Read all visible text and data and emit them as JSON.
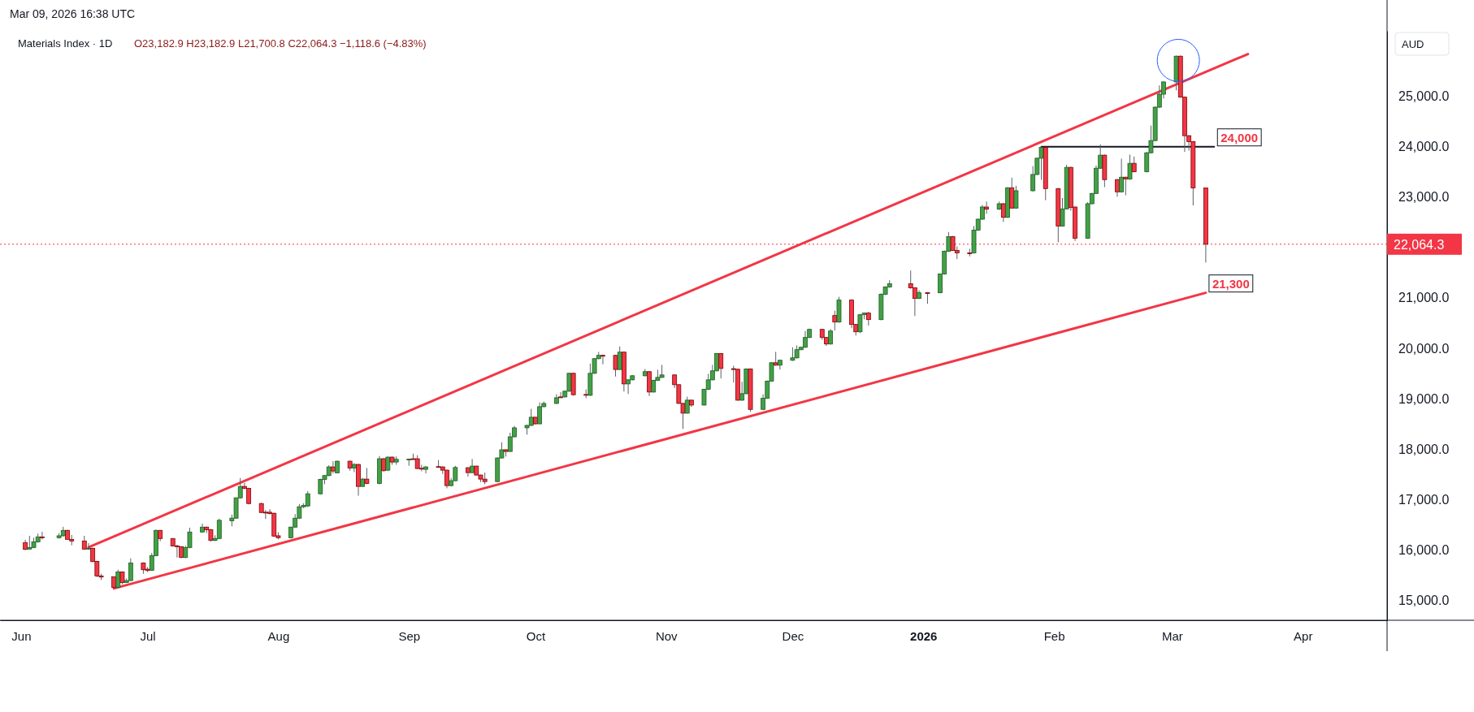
{
  "chart_data": {
    "type": "candlestick",
    "title": "Materials Index · 1D",
    "subtitle": "O23,182.9 H23,182.9 L21,700.8 C22,064.3 −1,118.6 (−4.83%)",
    "ylabel": "AUD",
    "annotations": [
      "Mar 09, 2026 16:38 UTC",
      {
        "text": "24,000",
        "x": "2026-03-11",
        "y": 24000
      },
      {
        "text": "21,300",
        "x": "2026-03-09",
        "y": 21100
      }
    ],
    "xlim": [
      "2025-05-27",
      "2026-04-21"
    ],
    "xticks": [
      {
        "value": "2025-06-01",
        "label": "Jun"
      },
      {
        "value": "2025-07-01",
        "label": "Jul"
      },
      {
        "value": "2025-08-01",
        "label": "Aug"
      },
      {
        "value": "2025-09-01",
        "label": "Sep"
      },
      {
        "value": "2025-10-01",
        "label": "Oct"
      },
      {
        "value": "2025-11-01",
        "label": "Nov"
      },
      {
        "value": "2025-12-01",
        "label": "Dec"
      },
      {
        "value": "2026-01-01",
        "label": "2026"
      },
      {
        "value": "2026-02-01",
        "label": "Feb"
      },
      {
        "value": "2026-03-01",
        "label": "Mar"
      },
      {
        "value": "2026-04-01",
        "label": "Apr"
      }
    ],
    "ylim": [
      14600,
      26300
    ],
    "yticks": [
      {
        "value": 15000,
        "label": "15,000.0"
      },
      {
        "value": 16000,
        "label": "16,000.0"
      },
      {
        "value": 17000,
        "label": "17,000.0"
      },
      {
        "value": 18000,
        "label": "18,000.0"
      },
      {
        "value": 19000,
        "label": "19,000.0"
      },
      {
        "value": 20000,
        "label": "20,000.0"
      },
      {
        "value": 21000,
        "label": "21,000.0"
      },
      {
        "value": 23000,
        "label": "23,000.0"
      },
      {
        "value": 24000,
        "label": "24,000.0"
      },
      {
        "value": 25000,
        "label": "25,000.0"
      }
    ],
    "ref_lines": [
      {
        "axis": "y",
        "value": 22064.3,
        "label": "22,064.3",
        "color": "#f23645",
        "line_style": "dotted"
      }
    ],
    "x": [
      "2025-06-02",
      "2025-06-03",
      "2025-06-04",
      "2025-06-05",
      "2025-06-06",
      "2025-06-10",
      "2025-06-11",
      "2025-06-12",
      "2025-06-13",
      "2025-06-16",
      "2025-06-17",
      "2025-06-18",
      "2025-06-19",
      "2025-06-20",
      "2025-06-23",
      "2025-06-24",
      "2025-06-25",
      "2025-06-26",
      "2025-06-27",
      "2025-06-30",
      "2025-07-01",
      "2025-07-02",
      "2025-07-03",
      "2025-07-04",
      "2025-07-07",
      "2025-07-08",
      "2025-07-09",
      "2025-07-10",
      "2025-07-11",
      "2025-07-14",
      "2025-07-15",
      "2025-07-16",
      "2025-07-17",
      "2025-07-18",
      "2025-07-21",
      "2025-07-22",
      "2025-07-23",
      "2025-07-24",
      "2025-07-25",
      "2025-07-28",
      "2025-07-29",
      "2025-07-30",
      "2025-07-31",
      "2025-08-01",
      "2025-08-04",
      "2025-08-05",
      "2025-08-06",
      "2025-08-07",
      "2025-08-08",
      "2025-08-11",
      "2025-08-12",
      "2025-08-13",
      "2025-08-14",
      "2025-08-15",
      "2025-08-18",
      "2025-08-19",
      "2025-08-20",
      "2025-08-21",
      "2025-08-22",
      "2025-08-25",
      "2025-08-26",
      "2025-08-27",
      "2025-08-28",
      "2025-08-29",
      "2025-09-01",
      "2025-09-02",
      "2025-09-03",
      "2025-09-04",
      "2025-09-05",
      "2025-09-08",
      "2025-09-09",
      "2025-09-10",
      "2025-09-11",
      "2025-09-12",
      "2025-09-15",
      "2025-09-16",
      "2025-09-17",
      "2025-09-18",
      "2025-09-19",
      "2025-09-22",
      "2025-09-23",
      "2025-09-24",
      "2025-09-25",
      "2025-09-26",
      "2025-09-29",
      "2025-09-30",
      "2025-10-01",
      "2025-10-02",
      "2025-10-03",
      "2025-10-06",
      "2025-10-07",
      "2025-10-08",
      "2025-10-09",
      "2025-10-10",
      "2025-10-13",
      "2025-10-14",
      "2025-10-15",
      "2025-10-16",
      "2025-10-17",
      "2025-10-20",
      "2025-10-21",
      "2025-10-22",
      "2025-10-23",
      "2025-10-24",
      "2025-10-27",
      "2025-10-28",
      "2025-10-29",
      "2025-10-30",
      "2025-10-31",
      "2025-11-03",
      "2025-11-04",
      "2025-11-05",
      "2025-11-06",
      "2025-11-07",
      "2025-11-10",
      "2025-11-11",
      "2025-11-12",
      "2025-11-13",
      "2025-11-14",
      "2025-11-17",
      "2025-11-18",
      "2025-11-19",
      "2025-11-20",
      "2025-11-21",
      "2025-11-24",
      "2025-11-25",
      "2025-11-26",
      "2025-11-27",
      "2025-11-28",
      "2025-12-01",
      "2025-12-02",
      "2025-12-03",
      "2025-12-04",
      "2025-12-05",
      "2025-12-08",
      "2025-12-09",
      "2025-12-10",
      "2025-12-11",
      "2025-12-12",
      "2025-12-15",
      "2025-12-16",
      "2025-12-17",
      "2025-12-18",
      "2025-12-19",
      "2025-12-22",
      "2025-12-23",
      "2025-12-24",
      "2025-12-29",
      "2025-12-30",
      "2025-12-31",
      "2026-01-02",
      "2026-01-05",
      "2026-01-06",
      "2026-01-07",
      "2026-01-08",
      "2026-01-09",
      "2026-01-12",
      "2026-01-13",
      "2026-01-14",
      "2026-01-15",
      "2026-01-16",
      "2026-01-19",
      "2026-01-20",
      "2026-01-21",
      "2026-01-22",
      "2026-01-23",
      "2026-01-27",
      "2026-01-28",
      "2026-01-29",
      "2026-01-30",
      "2026-02-02",
      "2026-02-03",
      "2026-02-04",
      "2026-02-05",
      "2026-02-06",
      "2026-02-09",
      "2026-02-10",
      "2026-02-11",
      "2026-02-12",
      "2026-02-13",
      "2026-02-16",
      "2026-02-17",
      "2026-02-18",
      "2026-02-19",
      "2026-02-20",
      "2026-02-23",
      "2026-02-24",
      "2026-02-25",
      "2026-02-26",
      "2026-02-27",
      "2026-03-02",
      "2026-03-03",
      "2026-03-04",
      "2026-03-05",
      "2026-03-06",
      "2026-03-09"
    ],
    "ohlc": [
      [
        16142,
        16196,
        15991,
        16007
      ],
      [
        16013,
        16277,
        16007,
        16045
      ],
      [
        16045,
        16239,
        16030,
        16158
      ],
      [
        16158,
        16320,
        16140,
        16255
      ],
      [
        16255,
        16357,
        16206,
        16250
      ],
      [
        16239,
        16330,
        16222,
        16277
      ],
      [
        16277,
        16454,
        16260,
        16384
      ],
      [
        16384,
        16400,
        16206,
        16206
      ],
      [
        16206,
        16293,
        16088,
        16174
      ],
      [
        16174,
        16277,
        16000,
        16013
      ],
      [
        16024,
        16131,
        15997,
        16030
      ],
      [
        16029,
        16040,
        15754,
        15765
      ],
      [
        15770,
        15780,
        15458,
        15480
      ],
      [
        15480,
        15523,
        15400,
        15458
      ],
      [
        15463,
        15470,
        15237,
        15253
      ],
      [
        15253,
        15603,
        15240,
        15560
      ],
      [
        15560,
        15570,
        15318,
        15350
      ],
      [
        15350,
        15431,
        15340,
        15388
      ],
      [
        15388,
        15830,
        15380,
        15738
      ],
      [
        15738,
        15750,
        15522,
        15603
      ],
      [
        15614,
        15657,
        15555,
        15587
      ],
      [
        15592,
        15937,
        15580,
        15883
      ],
      [
        15883,
        16400,
        15870,
        16384
      ],
      [
        16384,
        16395,
        16169,
        16223
      ],
      [
        16223,
        16230,
        16060,
        16077
      ],
      [
        16077,
        16099,
        15846,
        16070
      ],
      [
        16061,
        16070,
        15830,
        15846
      ],
      [
        15846,
        16077,
        15830,
        16045
      ],
      [
        16045,
        16438,
        16030,
        16352
      ],
      [
        16352,
        16519,
        16340,
        16449
      ],
      [
        16449,
        16460,
        16330,
        16395
      ],
      [
        16400,
        16410,
        16158,
        16185
      ],
      [
        16185,
        16288,
        16170,
        16223
      ],
      [
        16223,
        16616,
        16210,
        16584
      ],
      [
        16573,
        16697,
        16465,
        16627
      ],
      [
        16627,
        17040,
        16615,
        17030
      ],
      [
        17030,
        17424,
        17015,
        17257
      ],
      [
        17257,
        17327,
        17200,
        17219
      ],
      [
        17219,
        17230,
        16900,
        16917
      ],
      [
        16917,
        16933,
        16725,
        16740
      ],
      [
        16745,
        16788,
        16610,
        16740
      ],
      [
        16745,
        16805,
        16697,
        16718
      ],
      [
        16724,
        16735,
        16255,
        16271
      ],
      [
        16277,
        16347,
        16206,
        16239
      ],
      [
        16239,
        16460,
        16225,
        16449
      ],
      [
        16449,
        16708,
        16435,
        16627
      ],
      [
        16627,
        16907,
        16610,
        16853
      ],
      [
        16853,
        16923,
        16826,
        16880
      ],
      [
        16869,
        17165,
        16850,
        17111
      ],
      [
        17111,
        17410,
        17095,
        17397
      ],
      [
        17397,
        17485,
        17300,
        17472
      ],
      [
        17472,
        17676,
        17460,
        17644
      ],
      [
        17644,
        17757,
        17515,
        17563
      ],
      [
        17527,
        17770,
        17515,
        17757
      ],
      [
        17757,
        17770,
        17569,
        17622
      ],
      [
        17622,
        17720,
        17540,
        17693
      ],
      [
        17693,
        17705,
        17073,
        17257
      ],
      [
        17257,
        17424,
        17245,
        17402
      ],
      [
        17402,
        17623,
        17300,
        17316
      ],
      [
        17316,
        17860,
        17300,
        17806
      ],
      [
        17806,
        17820,
        17550,
        17569
      ],
      [
        17580,
        17850,
        17560,
        17838
      ],
      [
        17838,
        17850,
        17687,
        17741
      ],
      [
        17741,
        17854,
        17687,
        17795
      ],
      [
        17790,
        17810,
        17666,
        17800
      ],
      [
        17806,
        17908,
        17790,
        17800
      ],
      [
        17806,
        17876,
        17600,
        17612
      ],
      [
        17617,
        17687,
        17558,
        17610
      ],
      [
        17596,
        17660,
        17515,
        17644
      ],
      [
        17650,
        17779,
        17630,
        17649
      ],
      [
        17644,
        17655,
        17504,
        17580
      ],
      [
        17580,
        17590,
        17219,
        17273
      ],
      [
        17273,
        17424,
        17260,
        17370
      ],
      [
        17370,
        17665,
        17360,
        17633
      ],
      [
        17628,
        17640,
        17450,
        17531
      ],
      [
        17531,
        17800,
        17520,
        17660
      ],
      [
        17660,
        17670,
        17470,
        17483
      ],
      [
        17483,
        17490,
        17343,
        17402
      ],
      [
        17402,
        17531,
        17300,
        17353
      ],
      [
        17353,
        17835,
        17340,
        17822
      ],
      [
        17822,
        18134,
        17810,
        17984
      ],
      [
        17984,
        17995,
        17849,
        17951
      ],
      [
        17951,
        18323,
        17940,
        18242
      ],
      [
        18242,
        18458,
        18230,
        18420
      ],
      [
        18420,
        18480,
        18285,
        18468
      ],
      [
        18468,
        18796,
        18455,
        18630
      ],
      [
        18630,
        18640,
        18484,
        18500
      ],
      [
        18500,
        18925,
        18490,
        18840
      ],
      [
        18840,
        18941,
        18828,
        18904
      ],
      [
        18904,
        19087,
        18890,
        19017
      ],
      [
        19034,
        19131,
        19012,
        19030
      ],
      [
        19034,
        19160,
        19020,
        19147
      ],
      [
        19147,
        19515,
        19135,
        19502
      ],
      [
        19502,
        19515,
        19060,
        19077
      ],
      [
        19082,
        19184,
        19007,
        19080
      ],
      [
        19066,
        19696,
        19050,
        19502
      ],
      [
        19502,
        19805,
        19490,
        19793
      ],
      [
        19793,
        19928,
        19780,
        19858
      ],
      [
        19858,
        19874,
        19680,
        19855
      ],
      [
        19858,
        19870,
        19438,
        19578
      ],
      [
        19578,
        20035,
        19565,
        19922
      ],
      [
        19922,
        19935,
        19141,
        19292
      ],
      [
        19292,
        19385,
        19093,
        19373
      ],
      [
        19373,
        19466,
        19360,
        19454
      ],
      [
        19454,
        19588,
        19440,
        19535
      ],
      [
        19535,
        19545,
        19050,
        19131
      ],
      [
        19131,
        19375,
        19118,
        19362
      ],
      [
        19362,
        19572,
        19350,
        19421
      ],
      [
        19421,
        19669,
        19408,
        19470
      ],
      [
        19470,
        19480,
        19211,
        19276
      ],
      [
        19276,
        19288,
        18893,
        18905
      ],
      [
        18905,
        18915,
        18398,
        18711
      ],
      [
        18711,
        19039,
        18700,
        18969
      ],
      [
        18969,
        18980,
        18835,
        18872
      ],
      [
        18872,
        19195,
        18860,
        19184
      ],
      [
        19184,
        19491,
        19170,
        19373
      ],
      [
        19373,
        19669,
        19360,
        19551
      ],
      [
        19551,
        19905,
        19540,
        19895
      ],
      [
        19895,
        19905,
        19400,
        19599
      ],
      [
        19594,
        19653,
        19319,
        19590
      ],
      [
        19583,
        19595,
        18955,
        18969
      ],
      [
        18969,
        19335,
        18955,
        19098
      ],
      [
        19098,
        19600,
        19085,
        19588
      ],
      [
        19588,
        19600,
        18738,
        18786
      ],
      [
        18786,
        19087,
        18770,
        19007
      ],
      [
        19007,
        19360,
        18995,
        19346
      ],
      [
        19346,
        19725,
        19335,
        19712
      ],
      [
        19712,
        19928,
        19650,
        19664
      ],
      [
        19664,
        19775,
        19578,
        19761
      ],
      [
        19761,
        20019,
        19748,
        19809
      ],
      [
        19809,
        20057,
        19796,
        19971
      ],
      [
        19971,
        20030,
        19960,
        20019
      ],
      [
        20019,
        20342,
        20005,
        20213
      ],
      [
        20213,
        20390,
        20200,
        20374
      ],
      [
        20374,
        20385,
        20170,
        20213
      ],
      [
        20213,
        20225,
        20046,
        20084
      ],
      [
        20084,
        20380,
        20070,
        20342
      ],
      [
        20649,
        20746,
        20353,
        20520
      ],
      [
        20520,
        21020,
        20505,
        20956
      ],
      [
        20956,
        20970,
        20396,
        20471
      ],
      [
        20471,
        20485,
        20251,
        20326
      ],
      [
        20326,
        20680,
        20300,
        20665
      ],
      [
        20665,
        20710,
        20574,
        20698
      ],
      [
        20698,
        20720,
        20450,
        20568
      ],
      [
        20568,
        21090,
        20555,
        21069
      ],
      [
        21069,
        21230,
        21055,
        21215
      ],
      [
        21215,
        21349,
        21200,
        21279
      ],
      [
        21279,
        21543,
        21180,
        21198
      ],
      [
        21198,
        21210,
        20638,
        20988
      ],
      [
        20988,
        21150,
        20975,
        21101
      ],
      [
        21102,
        21115,
        20881,
        21100
      ],
      [
        21101,
        21485,
        21090,
        21473
      ],
      [
        21473,
        21940,
        21460,
        21925
      ],
      [
        21925,
        22308,
        21910,
        22216
      ],
      [
        22216,
        22230,
        21930,
        21942
      ],
      [
        21942,
        22022,
        21770,
        21893
      ],
      [
        21893,
        21974,
        21823,
        21890
      ],
      [
        21893,
        22426,
        21880,
        22345
      ],
      [
        22345,
        22575,
        22330,
        22561
      ],
      [
        22561,
        22845,
        22550,
        22803
      ],
      [
        22803,
        22911,
        22668,
        22760
      ],
      [
        22760,
        22911,
        22745,
        22868
      ],
      [
        22868,
        22880,
        22507,
        22598
      ],
      [
        22598,
        23200,
        22585,
        23185
      ],
      [
        23185,
        23385,
        22770,
        22782
      ],
      [
        22782,
        23223,
        22770,
        23126
      ],
      [
        23126,
        23616,
        23110,
        23449
      ],
      [
        23449,
        23785,
        23435,
        23772
      ],
      [
        23772,
        24000,
        23342,
        23988
      ],
      [
        23988,
        24000,
        22938,
        23169
      ],
      [
        23169,
        23180,
        22103,
        22426
      ],
      [
        22426,
        22981,
        22415,
        22766
      ],
      [
        22766,
        23643,
        22755,
        23590
      ],
      [
        23590,
        23605,
        22728,
        22792
      ],
      [
        22803,
        22815,
        22130,
        22184
      ],
      [
        22184,
        22900,
        22170,
        22868
      ],
      [
        22868,
        23085,
        22855,
        23072
      ],
      [
        23072,
        23627,
        23060,
        23573
      ],
      [
        23573,
        24047,
        23560,
        23832
      ],
      [
        23832,
        23845,
        23196,
        23347
      ],
      [
        23347,
        23360,
        23008,
        23105
      ],
      [
        23105,
        23762,
        23090,
        23395
      ],
      [
        23395,
        23405,
        23035,
        23358
      ],
      [
        23358,
        23843,
        23345,
        23670
      ],
      [
        23670,
        23805,
        23490,
        23503
      ],
      [
        23503,
        23895,
        23490,
        23880
      ],
      [
        23880,
        24419,
        23865,
        24122
      ],
      [
        24122,
        24800,
        24110,
        24785
      ],
      [
        24785,
        25216,
        24770,
        25043
      ],
      [
        25043,
        25300,
        24957,
        25286
      ],
      [
        25286,
        25810,
        25119,
        25797
      ],
      [
        25797,
        25810,
        24970,
        24984
      ],
      [
        24984,
        24997,
        23896,
        24219
      ],
      [
        24219,
        24230,
        23923,
        24101
      ],
      [
        24101,
        24115,
        22835,
        23183
      ],
      [
        23182.9,
        23182.9,
        21700.8,
        22064.3
      ]
    ],
    "series": [
      {
        "type": "line",
        "color": "#f23645",
        "x": [
          "2025-06-17",
          "2026-03-19"
        ],
        "values": [
          16050,
          25840
        ]
      },
      {
        "type": "line",
        "color": "#f23645",
        "x": [
          "2025-06-23",
          "2026-03-09"
        ],
        "values": [
          15230,
          21100
        ]
      },
      {
        "type": "line",
        "color": "#131722",
        "x": [
          "2026-01-29",
          "2026-03-11"
        ],
        "values": [
          24000,
          24000
        ]
      }
    ]
  }
}
